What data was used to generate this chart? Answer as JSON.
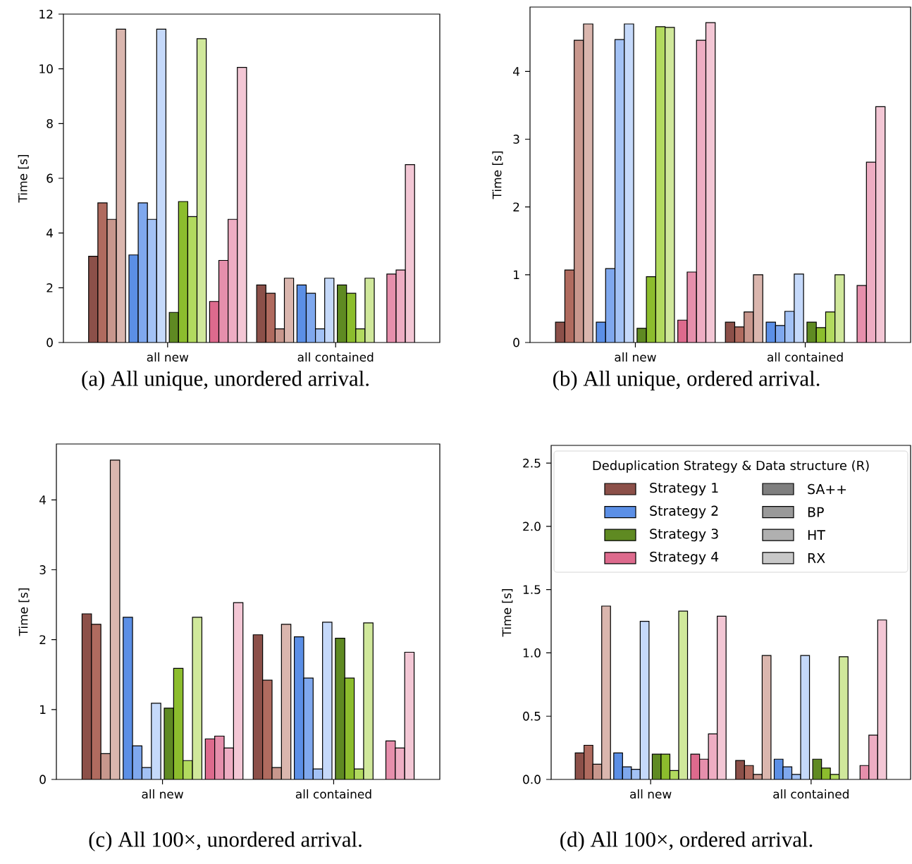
{
  "chart_data": [
    {
      "type": "bar",
      "title": "(a) All unique, unordered arrival.",
      "ylabel": "Time [s]",
      "categories": [
        "all new",
        "all contained"
      ],
      "ylim": [
        0,
        12
      ],
      "yticks": [
        0,
        2,
        4,
        6,
        8,
        10,
        12
      ],
      "series": [
        {
          "color": "#8c5049",
          "values": [
            3.15,
            2.1
          ]
        },
        {
          "color": "#b06b5f",
          "values": [
            5.1,
            1.8
          ]
        },
        {
          "color": "#c8978d",
          "values": [
            4.5,
            0.5
          ]
        },
        {
          "color": "#dab6ae",
          "values": [
            11.45,
            2.35
          ]
        },
        {
          "color": "#5b8fe6",
          "values": [
            3.2,
            2.1
          ]
        },
        {
          "color": "#7fa8ee",
          "values": [
            5.1,
            1.8
          ]
        },
        {
          "color": "#a3c2f5",
          "values": [
            4.5,
            0.5
          ]
        },
        {
          "color": "#c5d9fa",
          "values": [
            11.45,
            2.35
          ]
        },
        {
          "color": "#5f8a22",
          "values": [
            1.1,
            2.1
          ]
        },
        {
          "color": "#8cbd2d",
          "values": [
            5.15,
            1.8
          ]
        },
        {
          "color": "#b2da5f",
          "values": [
            4.6,
            0.5
          ]
        },
        {
          "color": "#d0e89b",
          "values": [
            11.1,
            2.35
          ]
        },
        {
          "color": "#dd6a8d",
          "values": [
            1.5,
            null
          ]
        },
        {
          "color": "#e68fac",
          "values": [
            3.0,
            2.5
          ]
        },
        {
          "color": "#eeadc3",
          "values": [
            4.5,
            2.65
          ]
        },
        {
          "color": "#f3c7d5",
          "values": [
            10.05,
            6.5
          ]
        }
      ]
    },
    {
      "type": "bar",
      "title": "(b) All unique, ordered arrival.",
      "ylabel": "Time [s]",
      "categories": [
        "all new",
        "all contained"
      ],
      "ylim": [
        0,
        4.95
      ],
      "yticks": [
        0,
        1,
        2,
        3,
        4
      ],
      "series": [
        {
          "color": "#8c5049",
          "values": [
            0.3,
            0.3
          ]
        },
        {
          "color": "#b06b5f",
          "values": [
            1.07,
            0.23
          ]
        },
        {
          "color": "#c8978d",
          "values": [
            4.46,
            0.45
          ]
        },
        {
          "color": "#dab6ae",
          "values": [
            4.7,
            1.0
          ]
        },
        {
          "color": "#5b8fe6",
          "values": [
            0.3,
            0.3
          ]
        },
        {
          "color": "#7fa8ee",
          "values": [
            1.09,
            0.25
          ]
        },
        {
          "color": "#a3c2f5",
          "values": [
            4.47,
            0.46
          ]
        },
        {
          "color": "#c5d9fa",
          "values": [
            4.7,
            1.01
          ]
        },
        {
          "color": "#5f8a22",
          "values": [
            0.21,
            0.3
          ]
        },
        {
          "color": "#8cbd2d",
          "values": [
            0.97,
            0.22
          ]
        },
        {
          "color": "#b2da5f",
          "values": [
            4.66,
            0.45
          ]
        },
        {
          "color": "#d0e89b",
          "values": [
            4.65,
            1.0
          ]
        },
        {
          "color": "#dd6a8d",
          "values": [
            0.33,
            null
          ]
        },
        {
          "color": "#e68fac",
          "values": [
            1.04,
            0.84
          ]
        },
        {
          "color": "#eeadc3",
          "values": [
            4.46,
            2.66
          ]
        },
        {
          "color": "#f3c7d5",
          "values": [
            4.72,
            3.48
          ]
        }
      ]
    },
    {
      "type": "bar",
      "title": "(c) All 100×, unordered arrival.",
      "ylabel": "Time [s]",
      "categories": [
        "all new",
        "all contained"
      ],
      "ylim": [
        0,
        4.8
      ],
      "yticks": [
        0,
        1,
        2,
        3,
        4
      ],
      "series": [
        {
          "color": "#8c5049",
          "values": [
            2.37,
            2.07
          ]
        },
        {
          "color": "#b06b5f",
          "values": [
            2.22,
            1.42
          ]
        },
        {
          "color": "#c8978d",
          "values": [
            0.37,
            0.17
          ]
        },
        {
          "color": "#dab6ae",
          "values": [
            4.57,
            2.22
          ]
        },
        {
          "color": "#5b8fe6",
          "values": [
            2.32,
            2.04
          ]
        },
        {
          "color": "#7fa8ee",
          "values": [
            0.48,
            1.45
          ]
        },
        {
          "color": "#a3c2f5",
          "values": [
            0.17,
            0.15
          ]
        },
        {
          "color": "#c5d9fa",
          "values": [
            1.09,
            2.25
          ]
        },
        {
          "color": "#5f8a22",
          "values": [
            1.02,
            2.02
          ]
        },
        {
          "color": "#8cbd2d",
          "values": [
            1.59,
            1.45
          ]
        },
        {
          "color": "#b2da5f",
          "values": [
            0.27,
            0.15
          ]
        },
        {
          "color": "#d0e89b",
          "values": [
            2.32,
            2.24
          ]
        },
        {
          "color": "#dd6a8d",
          "values": [
            0.58,
            null
          ]
        },
        {
          "color": "#e68fac",
          "values": [
            0.62,
            0.55
          ]
        },
        {
          "color": "#eeadc3",
          "values": [
            0.45,
            0.45
          ]
        },
        {
          "color": "#f3c7d5",
          "values": [
            2.53,
            1.82
          ]
        }
      ]
    },
    {
      "type": "bar",
      "title": "(d) All 100×, ordered arrival.",
      "ylabel": "Time [s]",
      "categories": [
        "all new",
        "all contained"
      ],
      "ylim": [
        0,
        2.64
      ],
      "yticks": [
        {
          "value": 0,
          "label": "0.0"
        },
        {
          "value": 0.5,
          "label": "0.5"
        },
        {
          "value": 1,
          "label": "1.0"
        },
        {
          "value": 1.5,
          "label": "1.5"
        },
        {
          "value": 2,
          "label": "2.0"
        },
        {
          "value": 2.5,
          "label": "2.5"
        }
      ],
      "legend_title": "Deduplication Strategy & Data structure (R)",
      "annotations": [
        "Strategy 1",
        "Strategy 2",
        "Strategy 3",
        "Strategy 4",
        "SA++",
        "BP",
        "HT",
        "RX"
      ],
      "series": [
        {
          "color": "#8c5049",
          "values": [
            0.21,
            0.15
          ]
        },
        {
          "color": "#b06b5f",
          "values": [
            0.27,
            0.11
          ]
        },
        {
          "color": "#c8978d",
          "values": [
            0.12,
            0.04
          ]
        },
        {
          "color": "#dab6ae",
          "values": [
            1.37,
            0.98
          ]
        },
        {
          "color": "#5b8fe6",
          "values": [
            0.21,
            0.16
          ]
        },
        {
          "color": "#7fa8ee",
          "values": [
            0.1,
            0.1
          ]
        },
        {
          "color": "#a3c2f5",
          "values": [
            0.08,
            0.04
          ]
        },
        {
          "color": "#c5d9fa",
          "values": [
            1.25,
            0.98
          ]
        },
        {
          "color": "#5f8a22",
          "values": [
            0.2,
            0.16
          ]
        },
        {
          "color": "#8cbd2d",
          "values": [
            0.2,
            0.09
          ]
        },
        {
          "color": "#b2da5f",
          "values": [
            0.07,
            0.04
          ]
        },
        {
          "color": "#d0e89b",
          "values": [
            1.33,
            0.97
          ]
        },
        {
          "color": "#dd6a8d",
          "values": [
            0.2,
            null
          ]
        },
        {
          "color": "#e68fac",
          "values": [
            0.16,
            0.11
          ]
        },
        {
          "color": "#eeadc3",
          "values": [
            0.36,
            0.35
          ]
        },
        {
          "color": "#f3c7d5",
          "values": [
            1.29,
            1.26
          ]
        }
      ]
    }
  ]
}
